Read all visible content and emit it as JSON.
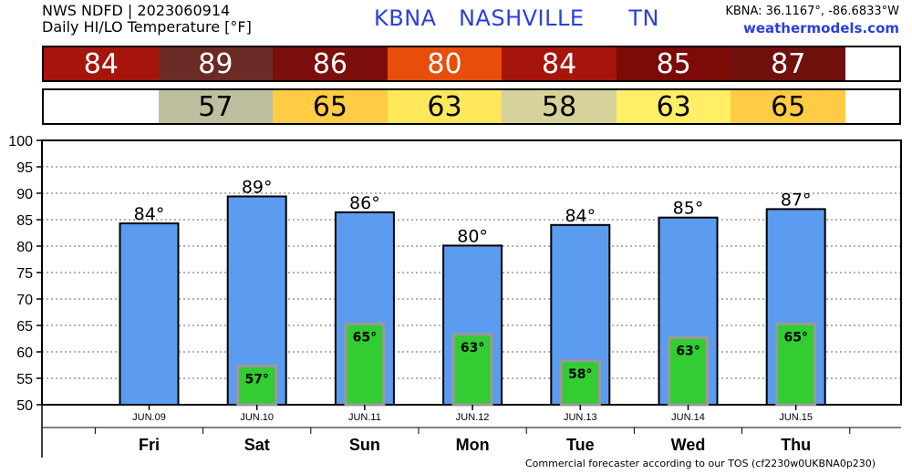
{
  "header": {
    "line1": "NWS NDFD | 2023060914",
    "line2": "Daily HI/LO Temperature [°F]",
    "station": "KBNA   NASHVILLE      TN",
    "coords": "KBNA: 36.1167°, -86.6833°W",
    "site": "weathermodels.com"
  },
  "hi_strip": [
    {
      "value": "84",
      "color": "#a6150c"
    },
    {
      "value": "89",
      "color": "#6b2a25"
    },
    {
      "value": "86",
      "color": "#7c0f0c"
    },
    {
      "value": "80",
      "color": "#e84e0b"
    },
    {
      "value": "84",
      "color": "#a6150c"
    },
    {
      "value": "85",
      "color": "#7c0a06"
    },
    {
      "value": "87",
      "color": "#6f100d"
    }
  ],
  "lo_strip": [
    {
      "value": "",
      "color": "#ffffff"
    },
    {
      "value": "57",
      "color": "#bfbfa0"
    },
    {
      "value": "65",
      "color": "#ffcc44"
    },
    {
      "value": "63",
      "color": "#ffe85c"
    },
    {
      "value": "58",
      "color": "#d6d39a"
    },
    {
      "value": "63",
      "color": "#ffee66"
    },
    {
      "value": "65",
      "color": "#ffcc44"
    }
  ],
  "chart_data": {
    "type": "bar",
    "categories": [
      "Fri",
      "Sat",
      "Sun",
      "Mon",
      "Tue",
      "Wed",
      "Thu"
    ],
    "dates": [
      "JUN.09",
      "JUN.10",
      "JUN.11",
      "JUN.12",
      "JUN.13",
      "JUN.14",
      "JUN.15"
    ],
    "series": [
      {
        "values": [
          84.3,
          89.4,
          86.4,
          80.1,
          84.0,
          85.4,
          87.0
        ],
        "labels": [
          "84°",
          "89°",
          "86°",
          "80°",
          "84°",
          "85°",
          "87°"
        ],
        "color": "#5b9bf0"
      },
      {
        "values": [
          null,
          57.3,
          65.3,
          63.3,
          58.3,
          62.7,
          65.3
        ],
        "labels": [
          "",
          "57°",
          "65°",
          "63°",
          "58°",
          "63°",
          "65°"
        ],
        "color": "#33cc33"
      }
    ],
    "ylim": [
      50,
      100
    ],
    "yticks": [
      50,
      55,
      60,
      65,
      70,
      75,
      80,
      85,
      90,
      95,
      100
    ],
    "grid": true
  },
  "footer": "Commercial forecaster according to our TOS (cf2230w0UKBNA0p230)"
}
